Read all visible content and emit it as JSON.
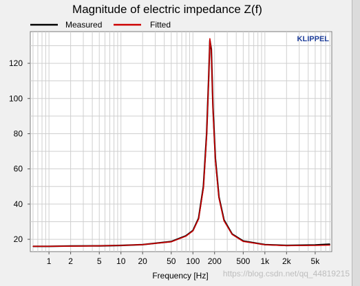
{
  "page": {
    "watermark": "https://blog.csdn.net/qq_44819215"
  },
  "chart_data": {
    "type": "line",
    "title": "Magnitude of electric impedance Z(f)",
    "xlabel": "Frequency [Hz]",
    "ylabel": "",
    "xscale": "log",
    "xlim": [
      0.55,
      8500
    ],
    "ylim": [
      13,
      138
    ],
    "brand": "KLIPPEL",
    "x_ticks": [
      {
        "v": 1,
        "label": "1"
      },
      {
        "v": 2,
        "label": "2"
      },
      {
        "v": 5,
        "label": "5"
      },
      {
        "v": 10,
        "label": "10"
      },
      {
        "v": 20,
        "label": "20"
      },
      {
        "v": 50,
        "label": "50"
      },
      {
        "v": 100,
        "label": "100"
      },
      {
        "v": 200,
        "label": "200"
      },
      {
        "v": 500,
        "label": "500"
      },
      {
        "v": 1000,
        "label": "1k"
      },
      {
        "v": 2000,
        "label": "2k"
      },
      {
        "v": 5000,
        "label": "5k"
      }
    ],
    "y_ticks": [
      {
        "v": 20,
        "label": "20"
      },
      {
        "v": 40,
        "label": "40"
      },
      {
        "v": 60,
        "label": "60"
      },
      {
        "v": 80,
        "label": "80"
      },
      {
        "v": 100,
        "label": "100"
      },
      {
        "v": 120,
        "label": "120"
      }
    ],
    "grid": true,
    "legend_position": "top",
    "series": [
      {
        "name": "Measured",
        "color": "#000000",
        "x": [
          0.6,
          1,
          2,
          5,
          10,
          20,
          50,
          80,
          100,
          120,
          140,
          155,
          165,
          172,
          180,
          190,
          205,
          230,
          270,
          350,
          500,
          1000,
          2000,
          5000,
          8000
        ],
        "y": [
          16,
          16,
          16.2,
          16.3,
          16.5,
          17,
          18.7,
          22,
          25,
          32,
          50,
          80,
          110,
          133,
          128,
          95,
          66,
          44,
          31,
          23,
          19,
          17,
          16.5,
          16.8,
          17.2
        ]
      },
      {
        "name": "Fitted",
        "color": "#cc0000",
        "x": [
          0.6,
          1,
          2,
          5,
          10,
          20,
          50,
          80,
          100,
          120,
          140,
          155,
          165,
          172,
          180,
          190,
          205,
          230,
          270,
          350,
          500,
          1000,
          2000,
          5000,
          8000
        ],
        "y": [
          16,
          16,
          16.1,
          16.3,
          16.5,
          17,
          18.6,
          21.8,
          24.8,
          31.5,
          49,
          79,
          109,
          134,
          127,
          94,
          65,
          43.5,
          30.5,
          22.8,
          18.8,
          16.9,
          16.4,
          16.5,
          16.7
        ]
      }
    ]
  }
}
